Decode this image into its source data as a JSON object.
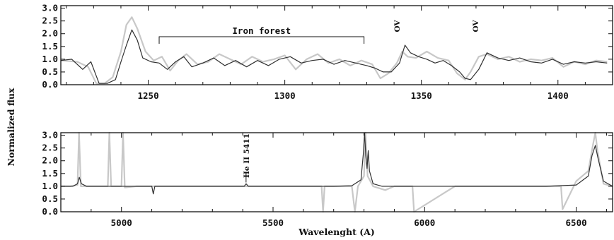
{
  "chart_data": [
    {
      "type": "line",
      "panel": "top",
      "x_tick_labels": [
        "1250",
        "1300",
        "1350",
        "1400"
      ],
      "y_tick_labels": [
        "0.0",
        "0.5",
        "1.0",
        "1.5",
        "2.0",
        "2.5",
        "3.0"
      ],
      "xlim": [
        1218,
        1420
      ],
      "ylim": [
        0,
        3.1
      ],
      "annotations": {
        "iron_forest": "Iron forest",
        "ov_1": "OV",
        "ov_2": "OV"
      },
      "iron_forest_range": [
        1254,
        1329
      ],
      "series": [
        {
          "key": "model",
          "color": "#c8c8c8",
          "x": [
            1218,
            1224,
            1228,
            1231,
            1234,
            1237,
            1240,
            1242,
            1244,
            1246,
            1249,
            1252,
            1255,
            1258,
            1261,
            1264,
            1268,
            1272,
            1276,
            1280,
            1284,
            1288,
            1292,
            1296,
            1300,
            1304,
            1308,
            1312,
            1316,
            1320,
            1324,
            1328,
            1332,
            1335,
            1338,
            1341,
            1343,
            1345,
            1348,
            1352,
            1356,
            1360,
            1363,
            1366,
            1368,
            1371,
            1374,
            1378,
            1382,
            1386,
            1390,
            1394,
            1398,
            1402,
            1406,
            1410,
            1414,
            1418
          ],
          "values": [
            0.95,
            0.9,
            0.7,
            0.05,
            0.05,
            0.3,
            1.3,
            2.35,
            2.65,
            2.2,
            1.3,
            0.95,
            1.1,
            0.55,
            0.95,
            1.2,
            0.8,
            0.9,
            1.2,
            1.0,
            0.8,
            1.1,
            0.9,
            1.0,
            1.15,
            0.6,
            1.0,
            1.2,
            0.85,
            1.0,
            0.75,
            0.95,
            0.8,
            0.25,
            0.45,
            0.85,
            1.3,
            1.1,
            1.05,
            1.3,
            1.05,
            0.95,
            0.45,
            0.2,
            0.5,
            1.1,
            1.2,
            1.0,
            1.1,
            0.9,
            1.0,
            0.95,
            1.05,
            0.7,
            0.9,
            0.8,
            0.95,
            0.9
          ]
        },
        {
          "key": "observed",
          "color": "#303030",
          "x": [
            1218,
            1222,
            1226,
            1229,
            1232,
            1235,
            1238,
            1240,
            1242,
            1244,
            1246,
            1248,
            1251,
            1254,
            1257,
            1260,
            1263,
            1266,
            1270,
            1274,
            1278,
            1282,
            1286,
            1290,
            1294,
            1298,
            1302,
            1306,
            1310,
            1314,
            1318,
            1322,
            1326,
            1330,
            1333,
            1336,
            1339,
            1342,
            1344,
            1346,
            1349,
            1352,
            1355,
            1358,
            1361,
            1364,
            1366,
            1368,
            1371,
            1374,
            1378,
            1382,
            1386,
            1390,
            1394,
            1398,
            1402,
            1406,
            1410,
            1414,
            1418
          ],
          "values": [
            0.95,
            1.0,
            0.6,
            0.9,
            0.05,
            0.05,
            0.2,
            0.9,
            1.55,
            2.15,
            1.75,
            1.05,
            0.9,
            0.85,
            0.6,
            0.9,
            1.1,
            0.7,
            0.85,
            1.05,
            0.75,
            0.95,
            0.7,
            0.95,
            0.75,
            1.0,
            1.1,
            0.85,
            0.95,
            1.0,
            0.8,
            0.95,
            0.85,
            0.75,
            0.65,
            0.5,
            0.5,
            0.85,
            1.55,
            1.25,
            1.1,
            1.0,
            0.85,
            0.95,
            0.75,
            0.5,
            0.25,
            0.2,
            0.6,
            1.25,
            1.05,
            0.95,
            1.05,
            0.9,
            0.85,
            1.0,
            0.8,
            0.9,
            0.85,
            0.9,
            0.85
          ]
        }
      ]
    },
    {
      "type": "line",
      "panel": "bottom",
      "x_tick_labels": [
        "5000",
        "5500",
        "6000",
        "6500"
      ],
      "y_tick_labels": [
        "0.0",
        "0.5",
        "1.0",
        "1.5",
        "2.0",
        "2.5",
        "3.0"
      ],
      "xlabel": "Wavelenght (A)",
      "ylabel": "Normalized flux",
      "xlim": [
        4800,
        6620
      ],
      "ylim": [
        0,
        3.1
      ],
      "annotations": {
        "he_ii": "He II 5411"
      },
      "series": [
        {
          "key": "model",
          "color": "#c8c8c8",
          "x": [
            4800,
            4830,
            4855,
            4860,
            4866,
            4880,
            4920,
            4955,
            4960,
            4966,
            5000,
            5005,
            5011,
            5050,
            5200,
            5400,
            5600,
            5660,
            5665,
            5670,
            5700,
            5760,
            5770,
            5780,
            5800,
            5805,
            5812,
            5830,
            5870,
            5900,
            5960,
            5965,
            6100,
            6300,
            6450,
            6455,
            6500,
            6540,
            6555,
            6563,
            6570,
            6590,
            6620
          ],
          "values": [
            1.0,
            1.0,
            1.05,
            3.1,
            1.0,
            1.0,
            1.0,
            1.0,
            3.1,
            1.0,
            1.0,
            3.1,
            0.95,
            1.0,
            1.0,
            1.0,
            1.0,
            1.0,
            0.0,
            1.0,
            1.0,
            1.0,
            0.0,
            1.0,
            1.4,
            3.1,
            1.4,
            1.0,
            0.85,
            1.0,
            1.0,
            0.0,
            1.0,
            1.0,
            1.0,
            0.1,
            1.2,
            1.6,
            2.6,
            3.1,
            2.4,
            1.1,
            1.0
          ]
        },
        {
          "key": "observed",
          "color": "#303030",
          "x": [
            4800,
            4840,
            4855,
            4861,
            4868,
            4885,
            5000,
            5100,
            5105,
            5110,
            5300,
            5405,
            5411,
            5418,
            5600,
            5700,
            5760,
            5790,
            5798,
            5802,
            5806,
            5810,
            5814,
            5818,
            5830,
            5860,
            5900,
            6000,
            6200,
            6400,
            6500,
            6540,
            6552,
            6563,
            6572,
            6590,
            6620
          ],
          "values": [
            1.0,
            1.0,
            1.1,
            1.35,
            1.1,
            1.0,
            1.0,
            1.0,
            0.7,
            1.0,
            1.0,
            1.0,
            1.1,
            1.0,
            1.0,
            1.0,
            1.02,
            1.25,
            2.3,
            3.1,
            2.2,
            1.7,
            2.4,
            1.6,
            1.1,
            1.0,
            1.0,
            1.0,
            1.0,
            1.0,
            1.05,
            1.4,
            2.2,
            2.6,
            2.1,
            1.2,
            1.0
          ]
        }
      ]
    }
  ]
}
